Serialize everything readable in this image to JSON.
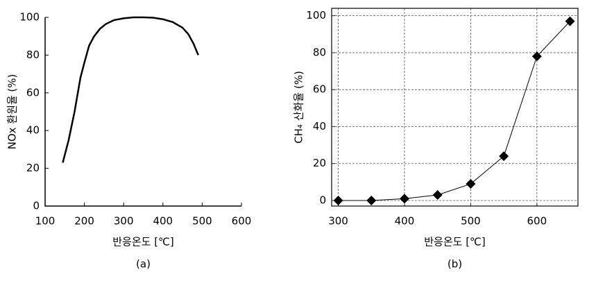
{
  "chart_data": [
    {
      "type": "line",
      "caption": "(a)",
      "x_label": "반응온도 [℃]",
      "y_label": "NOx 환원율 (%)",
      "x": [
        145,
        160,
        175,
        190,
        200,
        212,
        225,
        240,
        255,
        275,
        300,
        325,
        350,
        375,
        400,
        425,
        450,
        465,
        478,
        490
      ],
      "values": [
        23,
        35,
        50,
        68,
        76,
        85,
        90,
        94,
        96.5,
        98.5,
        99.5,
        100,
        100,
        99.8,
        99,
        97.5,
        94.5,
        91,
        86,
        80
      ],
      "color": "#000000",
      "marker": false,
      "grid": false,
      "xlim": [
        100,
        600
      ],
      "xticks": [
        100,
        200,
        300,
        400,
        500,
        600
      ],
      "ylim": [
        0,
        100
      ],
      "yticks": [
        0,
        20,
        40,
        60,
        80,
        100
      ]
    },
    {
      "type": "line",
      "caption": "(b)",
      "x_label": "반응온도 [℃]",
      "y_label": "CH₄ 산화율 (%)",
      "x": [
        300,
        350,
        400,
        450,
        500,
        550,
        600,
        650
      ],
      "values": [
        0,
        0,
        1,
        3,
        9,
        24,
        78,
        97
      ],
      "color": "#000000",
      "marker": true,
      "grid": true,
      "xlim": [
        290,
        662
      ],
      "xticks": [
        300,
        400,
        500,
        600
      ],
      "ylim": [
        -3,
        104
      ],
      "yticks": [
        0,
        20,
        40,
        60,
        80,
        100
      ]
    }
  ]
}
